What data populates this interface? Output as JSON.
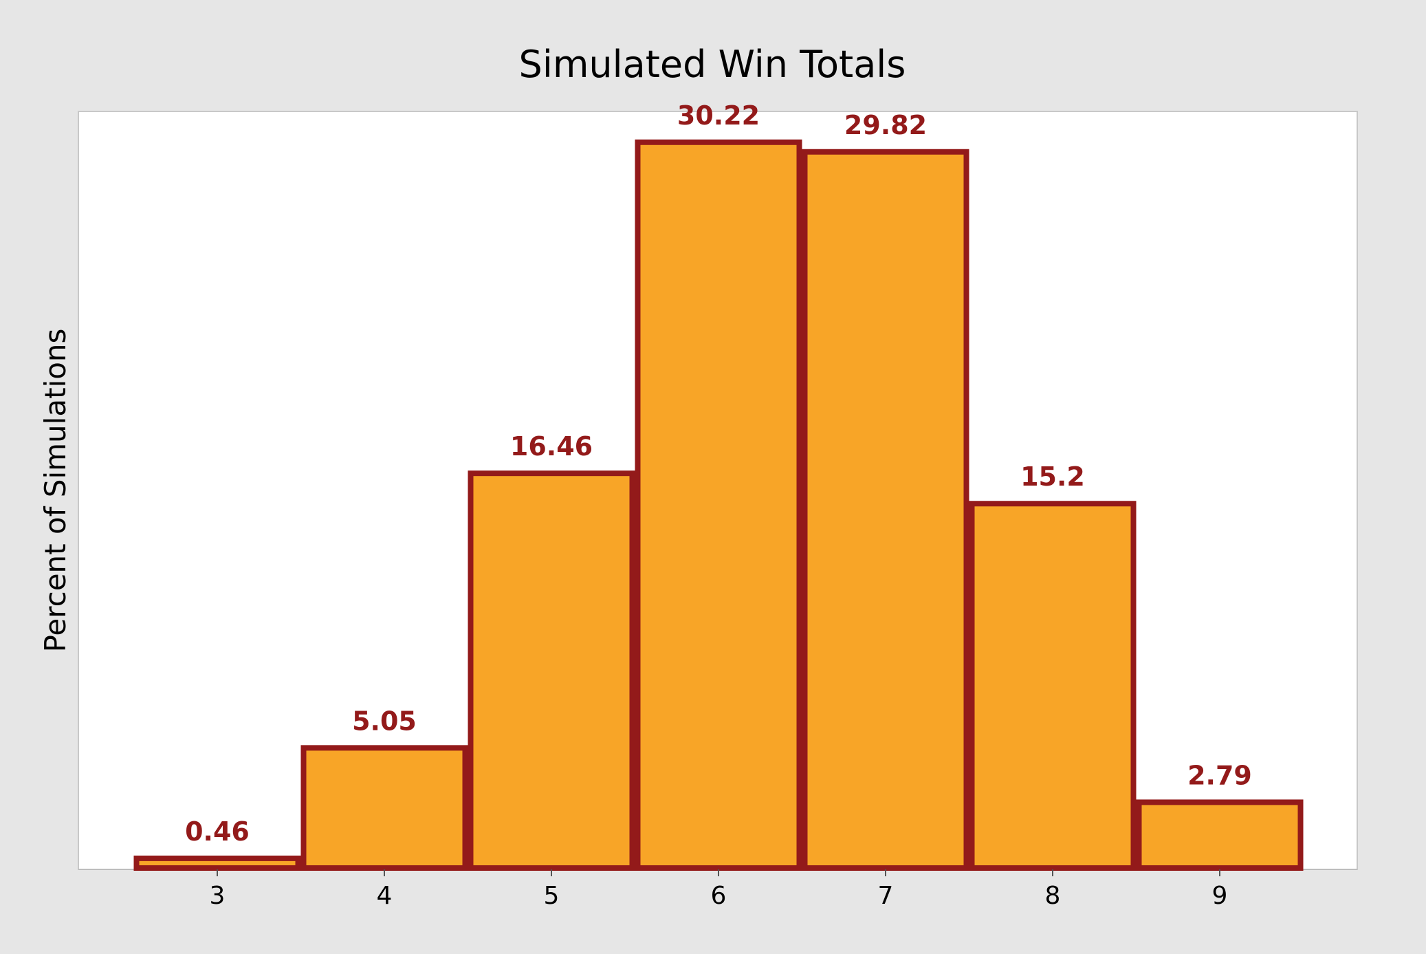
{
  "chart_data": {
    "type": "bar",
    "title": "Simulated Win Totals",
    "xlabel": "",
    "ylabel": "Percent of Simulations",
    "categories": [
      "3",
      "4",
      "5",
      "6",
      "7",
      "8",
      "9"
    ],
    "values": [
      0.46,
      5.05,
      16.46,
      30.22,
      29.82,
      15.2,
      2.79
    ],
    "data_labels": [
      "0.46",
      "5.05",
      "16.46",
      "30.22",
      "29.82",
      "15.2",
      "2.79"
    ],
    "ylim": [
      0,
      31.5
    ],
    "grid": false,
    "legend": "none",
    "colors": {
      "bar_fill": "#f8a527",
      "bar_edge": "#931a1a",
      "label": "#931a1a",
      "plot_background": "#ffffff",
      "figure_background": "#e6e6e6",
      "frame": "#c8c8c8"
    }
  }
}
